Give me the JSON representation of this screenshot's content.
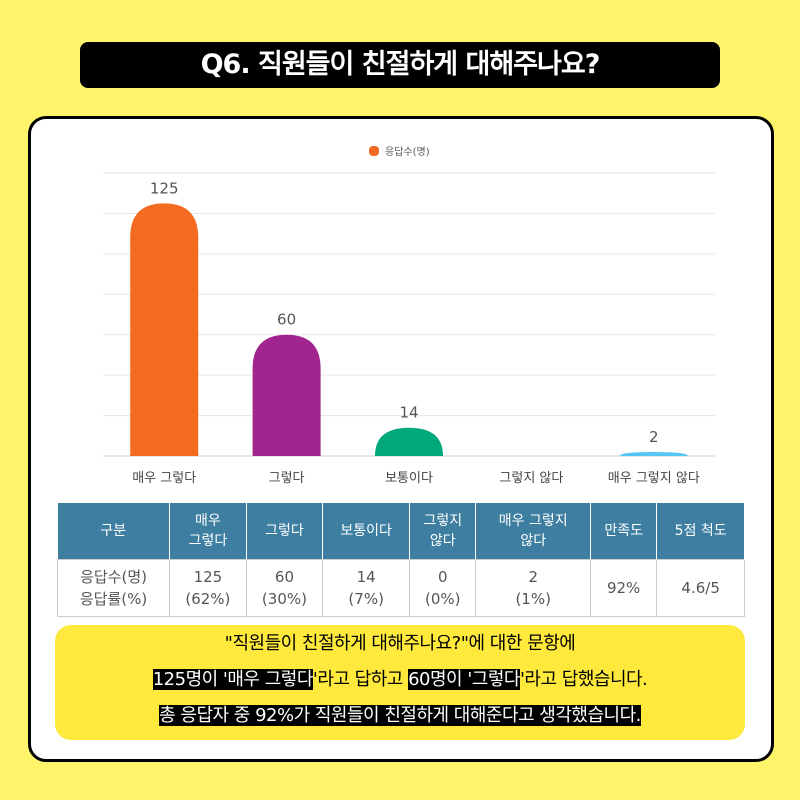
{
  "title": "Q6. 직원들이 친절하게 대해주나요?",
  "chart_data": {
    "type": "bar",
    "categories": [
      "매우 그렇다",
      "그렇다",
      "보통이다",
      "그렇지 않다",
      "매우 그렇지 않다"
    ],
    "series": [
      {
        "name": "응답수(명)",
        "values": [
          125,
          60,
          14,
          0,
          2
        ],
        "colors": [
          "#f26b21",
          "#a0258f",
          "#00a87a",
          "#3aa0e0",
          "#55c5f5"
        ]
      }
    ],
    "ylim": [
      0,
      140
    ],
    "grid": true,
    "legend": "top"
  },
  "table": {
    "headers": [
      "구분",
      "매우\n그렇다",
      "그렇다",
      "보통이다",
      "그렇지\n않다",
      "매우 그렇지\n않다",
      "만족도",
      "5점 척도"
    ],
    "row_label": [
      "응답수(명)",
      "응답률(%)"
    ],
    "counts": [
      "125",
      "60",
      "14",
      "0",
      "2"
    ],
    "rates": [
      "(62%)",
      "(30%)",
      "(7%)",
      "(0%)",
      "(1%)"
    ],
    "satisfaction": "92%",
    "scale": "4.6/5"
  },
  "summary": {
    "line1": "\"직원들이 친절하게 대해주나요?\"에 대한 문항에",
    "l2a": "125명이 '매우 그렇다",
    "l2b": "'라고 답하고 ",
    "l2c": "60명이 '그렇다",
    "l2d": "'라고 답했습니다.",
    "line3": "총 응답자 중 92%가 직원들이 친절하게 대해준다고 생각했습니다."
  }
}
